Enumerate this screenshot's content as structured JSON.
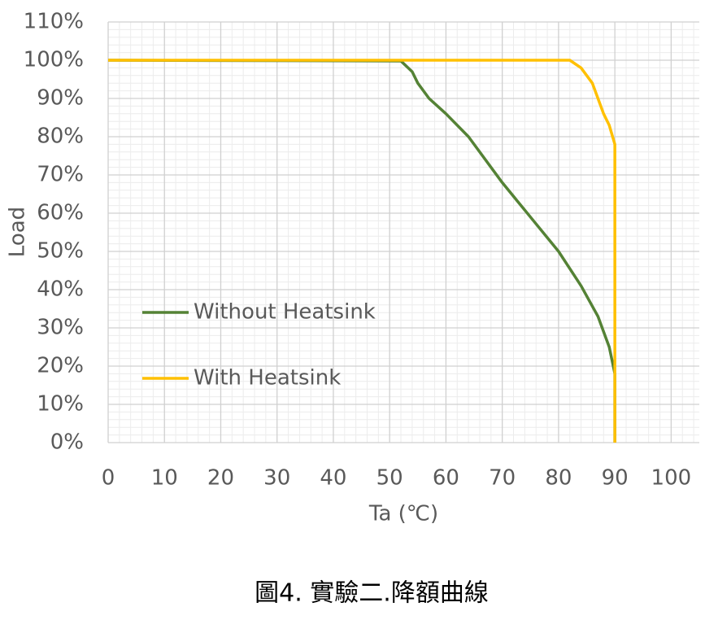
{
  "chart_data": {
    "type": "line",
    "caption": "圖4. 實驗二.降額曲線",
    "xlabel": "Ta (℃)",
    "ylabel": "Load",
    "xlim": [
      0,
      105
    ],
    "ylim": [
      0,
      110
    ],
    "xticks": [
      0,
      10,
      20,
      30,
      40,
      50,
      60,
      70,
      80,
      90,
      100
    ],
    "yticks": [
      {
        "value": 0,
        "label": "0%"
      },
      {
        "value": 10,
        "label": "10%"
      },
      {
        "value": 20,
        "label": "20%"
      },
      {
        "value": 30,
        "label": "30%"
      },
      {
        "value": 40,
        "label": "40%"
      },
      {
        "value": 50,
        "label": "50%"
      },
      {
        "value": 60,
        "label": "60%"
      },
      {
        "value": 70,
        "label": "70%"
      },
      {
        "value": 80,
        "label": "80%"
      },
      {
        "value": 90,
        "label": "90%"
      },
      {
        "value": 100,
        "label": "100%"
      },
      {
        "value": 110,
        "label": "110%"
      }
    ],
    "grid": true,
    "minor_grid_divisions": 5,
    "legend_position": "center-left",
    "series": [
      {
        "name": "Without Heatsink",
        "color": "#548235",
        "x": [
          0,
          52,
          54,
          55,
          57,
          60,
          64,
          70,
          75,
          80,
          84,
          87,
          89,
          90,
          90
        ],
        "values": [
          100,
          99.8,
          97,
          94,
          90,
          86,
          80,
          68,
          59,
          50,
          41,
          33,
          25,
          18,
          0
        ]
      },
      {
        "name": "With Heatsink",
        "color": "#ffc000",
        "x": [
          0,
          82,
          84,
          86,
          87,
          88,
          89,
          90,
          90
        ],
        "values": [
          100,
          100,
          98,
          94,
          90,
          86,
          83,
          78,
          0
        ]
      }
    ]
  }
}
